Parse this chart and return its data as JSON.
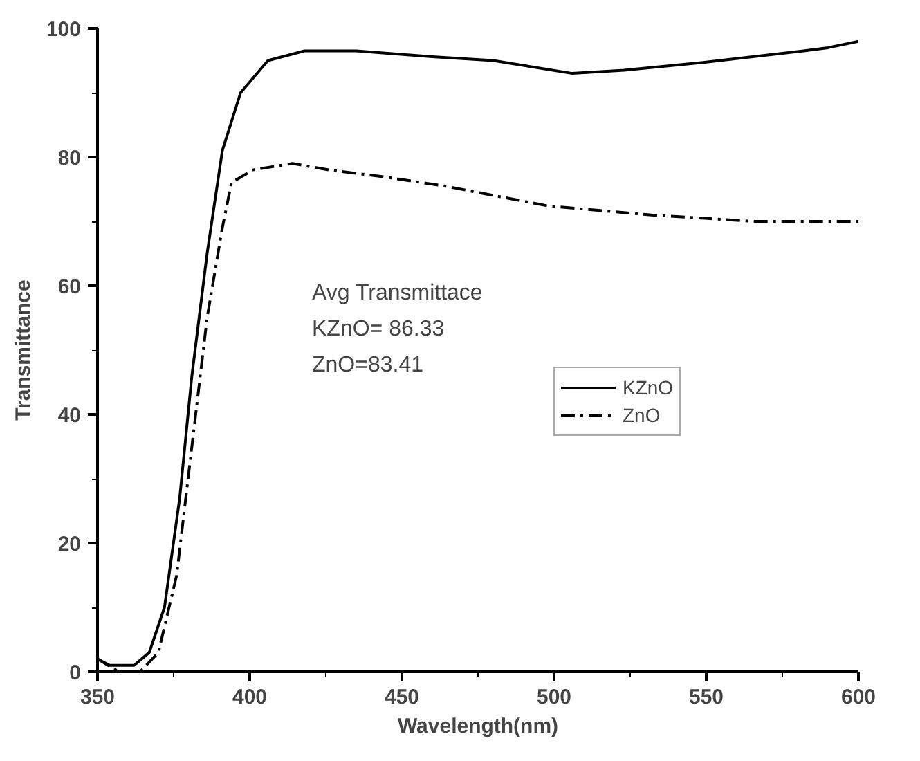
{
  "chart_data": {
    "type": "line",
    "xlabel": "Wavelength(nm)",
    "ylabel": "Transmittance",
    "xlim": [
      350,
      600
    ],
    "ylim": [
      0,
      100
    ],
    "xticks": [
      350,
      400,
      450,
      500,
      550,
      600
    ],
    "yticks": [
      0,
      20,
      40,
      60,
      80,
      100
    ],
    "grid": false,
    "legend": "right",
    "marker": "none",
    "annotations": [
      "Avg Transmittace",
      "KZnO= 86.33",
      "ZnO=83.41"
    ],
    "series": [
      {
        "name": "KZnO",
        "color": "#000000",
        "line_style": "solid",
        "x": [
          350,
          354,
          362,
          367,
          372,
          377,
          381,
          386,
          391,
          397,
          406,
          418,
          435,
          460,
          480,
          506,
          523,
          549,
          582,
          590,
          600
        ],
        "values": [
          2,
          1,
          1,
          3,
          10,
          27,
          46,
          65,
          81,
          90,
          95,
          96.5,
          96.5,
          95.6,
          95,
          93,
          93.5,
          94.7,
          96.5,
          97,
          98
        ]
      },
      {
        "name": "ZnO",
        "color": "#000000",
        "line_style": "dashdot",
        "x": [
          350,
          357,
          364,
          370,
          376,
          381,
          386,
          391,
          394,
          401,
          414,
          426,
          443,
          464,
          498,
          532,
          566,
          600
        ],
        "values": [
          2,
          0,
          0,
          3,
          15,
          35,
          55,
          69,
          76,
          78,
          79,
          78,
          77,
          75.5,
          72.4,
          71,
          70,
          70
        ]
      }
    ]
  }
}
